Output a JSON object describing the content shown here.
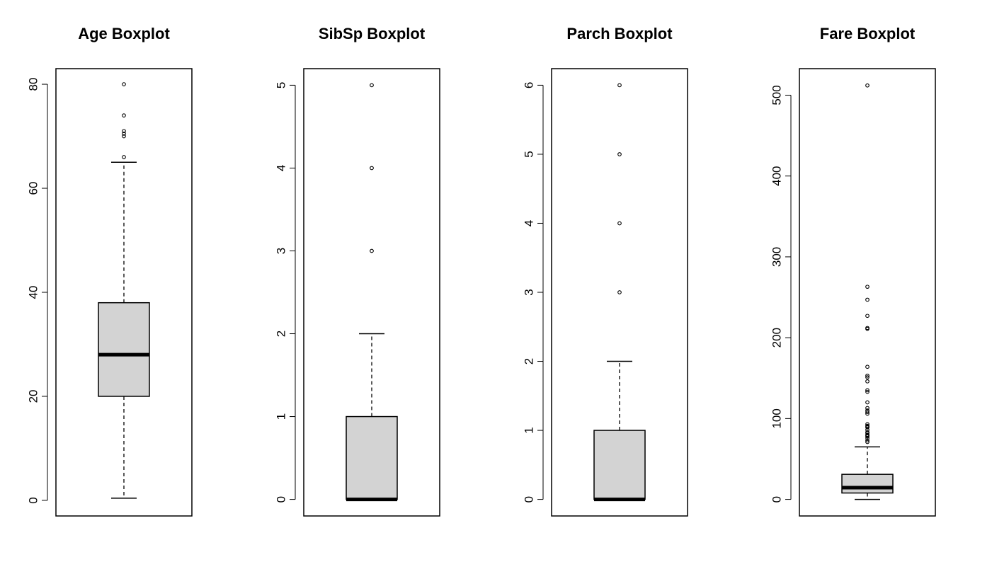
{
  "chart_data": [
    {
      "type": "boxplot",
      "title": "Age Boxplot",
      "ylim": [
        -3,
        83
      ],
      "yticks": [
        0,
        20,
        40,
        60,
        80
      ],
      "ytick_labels": [
        "0",
        "20",
        "40",
        "60",
        "80"
      ],
      "box": {
        "whisker_low": 0.42,
        "q1": 20,
        "median": 28,
        "q3": 38,
        "whisker_high": 65
      },
      "outliers": [
        66,
        70,
        70.5,
        71,
        74,
        80
      ],
      "colors": {
        "box_fill": "#d3d3d3",
        "stroke": "#000000"
      }
    },
    {
      "type": "boxplot",
      "title": "SibSp Boxplot",
      "ylim": [
        -0.2,
        5.2
      ],
      "yticks": [
        0,
        1,
        2,
        3,
        4,
        5
      ],
      "ytick_labels": [
        "0",
        "1",
        "2",
        "3",
        "4",
        "5"
      ],
      "box": {
        "whisker_low": 0,
        "q1": 0,
        "median": 0,
        "q3": 1,
        "whisker_high": 2
      },
      "outliers": [
        3,
        4,
        5
      ],
      "colors": {
        "box_fill": "#d3d3d3",
        "stroke": "#000000"
      }
    },
    {
      "type": "boxplot",
      "title": "Parch Boxplot",
      "ylim": [
        -0.24,
        6.24
      ],
      "yticks": [
        0,
        1,
        2,
        3,
        4,
        5,
        6
      ],
      "ytick_labels": [
        "0",
        "1",
        "2",
        "3",
        "4",
        "5",
        "6"
      ],
      "box": {
        "whisker_low": 0,
        "q1": 0,
        "median": 0,
        "q3": 1,
        "whisker_high": 2
      },
      "outliers": [
        3,
        4,
        5,
        6
      ],
      "colors": {
        "box_fill": "#d3d3d3",
        "stroke": "#000000"
      }
    },
    {
      "type": "boxplot",
      "title": "Fare Boxplot",
      "ylim": [
        -20.5,
        532.8
      ],
      "yticks": [
        0,
        100,
        200,
        300,
        400,
        500
      ],
      "ytick_labels": [
        "0",
        "100",
        "200",
        "300",
        "400",
        "500"
      ],
      "box": {
        "whisker_low": 0,
        "q1": 7.9,
        "median": 14.5,
        "q3": 31,
        "whisker_high": 65
      },
      "outliers": [
        71,
        73,
        76,
        78,
        79,
        80,
        82,
        83,
        86,
        89,
        90,
        91,
        93,
        106,
        108,
        110,
        113,
        120,
        133,
        135,
        146,
        151,
        153,
        164,
        211,
        212,
        227,
        247,
        263,
        512
      ],
      "colors": {
        "box_fill": "#d3d3d3",
        "stroke": "#000000"
      }
    }
  ]
}
